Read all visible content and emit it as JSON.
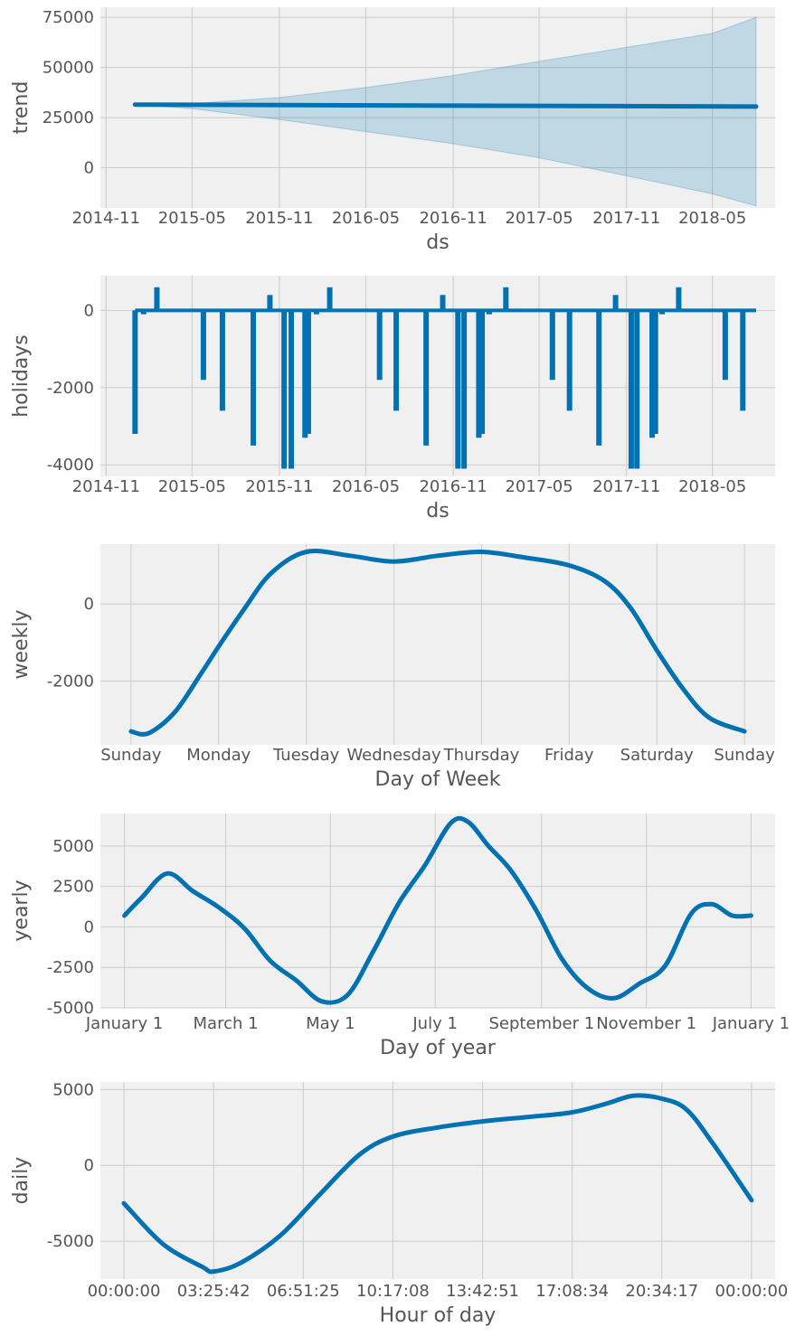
{
  "colors": {
    "line": "#0072b2",
    "band": "#0072b2",
    "background": "#f0f0f0",
    "grid": "#cbcbcb",
    "text": "#555555"
  },
  "chart_data": [
    {
      "type": "line",
      "xlabel": "ds",
      "ylabel": "trend",
      "xticks": [
        "2014-11",
        "2015-05",
        "2015-11",
        "2016-05",
        "2016-11",
        "2017-05",
        "2017-11",
        "2018-05"
      ],
      "yticks": [
        "0",
        "25000",
        "50000",
        "75000"
      ],
      "ylim": [
        -20000,
        80000
      ],
      "grid": true,
      "series": [
        {
          "x": [
            "2015-01-01",
            "2018-08-01"
          ],
          "values": [
            31500,
            30500
          ]
        }
      ],
      "uncertainty": {
        "x": [
          "2015-01-01",
          "2015-05-01",
          "2015-11-01",
          "2016-05-01",
          "2016-11-01",
          "2017-05-01",
          "2017-11-01",
          "2018-05-01",
          "2018-08-01"
        ],
        "upper": [
          31500,
          32000,
          35000,
          40000,
          46000,
          53000,
          60000,
          67000,
          75000
        ],
        "lower": [
          31500,
          29500,
          24000,
          18000,
          12000,
          5000,
          -4000,
          -13000,
          -19000
        ]
      }
    },
    {
      "type": "line",
      "xlabel": "ds",
      "ylabel": "holidays",
      "xticks": [
        "2014-11",
        "2015-05",
        "2015-11",
        "2016-05",
        "2016-11",
        "2017-05",
        "2017-11",
        "2018-05"
      ],
      "yticks": [
        "-4000",
        "-2000",
        "0"
      ],
      "ylim": [
        -4300,
        900
      ],
      "grid": true,
      "series": [
        {
          "x": [
            "2015-01-01",
            "2015-01-19",
            "2015-02-16",
            "2015-05-25",
            "2015-07-04",
            "2015-09-07",
            "2015-10-12",
            "2015-11-11",
            "2015-11-26",
            "2015-12-25",
            "2016-01-01",
            "2016-01-18",
            "2016-02-15",
            "2016-05-30",
            "2016-07-04",
            "2016-09-05",
            "2016-10-10",
            "2016-11-11",
            "2016-11-24",
            "2016-12-25",
            "2017-01-01",
            "2017-01-16",
            "2017-02-20",
            "2017-05-29",
            "2017-07-04",
            "2017-09-04",
            "2017-10-09",
            "2017-11-11",
            "2017-11-23",
            "2017-12-25",
            "2018-01-01",
            "2018-01-15",
            "2018-02-19",
            "2018-05-28",
            "2018-07-04"
          ],
          "values": [
            -3200,
            -100,
            600,
            -1800,
            -2600,
            -3500,
            400,
            -4100,
            -4100,
            -3300,
            -3200,
            -100,
            600,
            -1800,
            -2600,
            -3500,
            400,
            -4100,
            -4100,
            -3300,
            -3200,
            -100,
            600,
            -1800,
            -2600,
            -3500,
            400,
            -4100,
            -4100,
            -3300,
            -3200,
            -100,
            600,
            -1800,
            -2600
          ],
          "range": [
            "2015-01-01",
            "2018-08-01"
          ]
        }
      ]
    },
    {
      "type": "line",
      "xlabel": "Day of Week",
      "ylabel": "weekly",
      "xticks": [
        "Sunday",
        "Monday",
        "Tuesday",
        "Wednesday",
        "Thursday",
        "Friday",
        "Saturday",
        "Sunday"
      ],
      "yticks": [
        "-2000",
        "0"
      ],
      "ylim": [
        -3650,
        1550
      ],
      "grid": true,
      "series": [
        {
          "x": [
            0,
            0.2,
            0.5,
            0.8,
            1.0,
            1.3,
            1.6,
            2.0,
            2.5,
            3.0,
            3.5,
            4.0,
            4.5,
            5.0,
            5.4,
            5.7,
            6.0,
            6.3,
            6.6,
            7.0
          ],
          "values": [
            -3300,
            -3350,
            -2800,
            -1800,
            -1100,
            -100,
            800,
            1350,
            1250,
            1100,
            1250,
            1350,
            1200,
            1000,
            600,
            -100,
            -1200,
            -2200,
            -2950,
            -3300
          ]
        }
      ]
    },
    {
      "type": "line",
      "xlabel": "Day of year",
      "ylabel": "yearly",
      "xticks": [
        "January 1",
        "March 1",
        "May 1",
        "July 1",
        "September 1",
        "November 1",
        "January 1"
      ],
      "yticks": [
        "-5000",
        "-2500",
        "0",
        "2500",
        "5000"
      ],
      "ylim": [
        -5000,
        7000
      ],
      "grid": true,
      "series": [
        {
          "x": [
            0,
            10,
            25,
            40,
            55,
            70,
            85,
            100,
            115,
            130,
            145,
            160,
            175,
            190,
            200,
            212,
            225,
            240,
            255,
            270,
            285,
            300,
            315,
            330,
            342,
            354,
            365
          ],
          "values": [
            700,
            1800,
            3300,
            2200,
            1200,
            -100,
            -2100,
            -3300,
            -4600,
            -4200,
            -1500,
            1500,
            3800,
            6400,
            6500,
            5000,
            3500,
            1000,
            -2000,
            -3800,
            -4400,
            -3500,
            -2400,
            800,
            1400,
            700,
            700
          ]
        }
      ]
    },
    {
      "type": "line",
      "xlabel": "Hour of day",
      "ylabel": "daily",
      "xticks": [
        "00:00:00",
        "03:25:42",
        "06:51:25",
        "10:17:08",
        "13:42:51",
        "17:08:34",
        "20:34:17",
        "00:00:00"
      ],
      "yticks": [
        "-5000",
        "0",
        "5000"
      ],
      "ylim": [
        -7500,
        5500
      ],
      "grid": true,
      "series": [
        {
          "x": [
            0,
            1.5,
            3.0,
            3.43,
            4.5,
            6.0,
            7.5,
            9.0,
            10.28,
            12.0,
            13.71,
            15.5,
            17.14,
            18.5,
            19.5,
            20.57,
            21.5,
            22.5,
            24.0
          ],
          "values": [
            -2500,
            -5200,
            -6700,
            -7000,
            -6400,
            -4600,
            -1900,
            700,
            1900,
            2500,
            2900,
            3200,
            3500,
            4100,
            4600,
            4400,
            3700,
            1500,
            -2300
          ]
        }
      ]
    }
  ]
}
